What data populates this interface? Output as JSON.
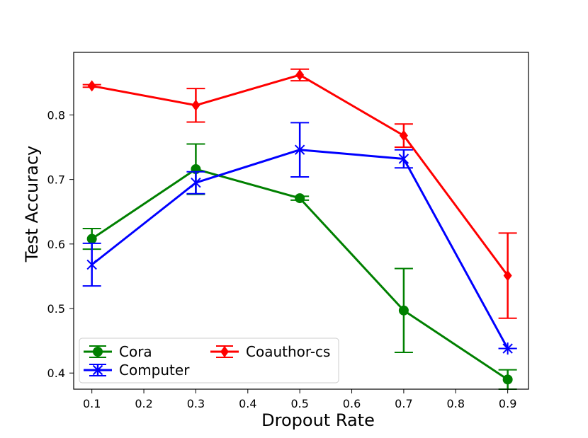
{
  "chart_data": {
    "type": "line",
    "title": "",
    "xlabel": "Dropout Rate",
    "ylabel": "Test Accuracy",
    "x": [
      0.1,
      0.3,
      0.5,
      0.7,
      0.9
    ],
    "xlim": [
      0.065,
      0.94
    ],
    "ylim": [
      0.375,
      0.897
    ],
    "xticks": [
      "0.1",
      "0.2",
      "0.3",
      "0.4",
      "0.5",
      "0.6",
      "0.7",
      "0.8",
      "0.9"
    ],
    "yticks": [
      "0.4",
      "0.5",
      "0.6",
      "0.7",
      "0.8"
    ],
    "grid": false,
    "legend_position": "lower-left",
    "series": [
      {
        "name": "Cora",
        "color": "#008000",
        "marker": "circle",
        "values": [
          0.608,
          0.716,
          0.671,
          0.497,
          0.39
        ],
        "errors": [
          0.016,
          0.039,
          0.003,
          0.065,
          0.015
        ]
      },
      {
        "name": "Computer",
        "color": "#0000ff",
        "marker": "x-star",
        "values": [
          0.568,
          0.695,
          0.746,
          0.732,
          0.438
        ],
        "errors": [
          0.033,
          0.017,
          0.042,
          0.014,
          0.0
        ]
      },
      {
        "name": "Coauthor-cs",
        "color": "#ff0000",
        "marker": "diamond",
        "values": [
          0.845,
          0.815,
          0.862,
          0.768,
          0.551
        ],
        "errors": [
          0.002,
          0.026,
          0.009,
          0.018,
          0.066
        ]
      }
    ]
  }
}
